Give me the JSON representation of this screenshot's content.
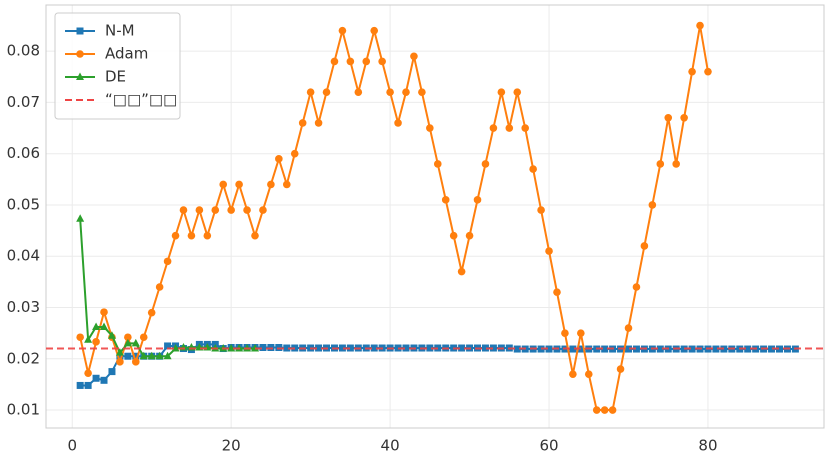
{
  "chart_data": {
    "type": "line",
    "xlim": [
      -3.3,
      94.6
    ],
    "ylim": [
      0.0065,
      0.089
    ],
    "xticks": [
      0,
      20,
      40,
      60,
      80
    ],
    "yticks": [
      0.01,
      0.02,
      0.03,
      0.04,
      0.05,
      0.06,
      0.07,
      0.08
    ],
    "grid": true,
    "legend": "upper left",
    "series": [
      {
        "name": "N-M",
        "color": "#1f77b4",
        "marker": "square",
        "x": [
          1,
          2,
          3,
          4,
          5,
          6,
          7,
          8,
          9,
          10,
          11,
          12,
          13,
          14,
          15,
          16,
          17,
          18,
          19,
          20,
          21,
          22,
          23,
          24,
          25,
          26,
          27,
          28,
          29,
          30,
          31,
          32,
          33,
          34,
          35,
          36,
          37,
          38,
          39,
          40,
          41,
          42,
          43,
          44,
          45,
          46,
          47,
          48,
          49,
          50,
          51,
          52,
          53,
          54,
          55,
          56,
          57,
          58,
          59,
          60,
          61,
          62,
          63,
          64,
          65,
          66,
          67,
          68,
          69,
          70,
          71,
          72,
          73,
          74,
          75,
          76,
          77,
          78,
          79,
          80,
          81,
          82,
          83,
          84,
          85,
          86,
          87,
          88,
          89,
          90,
          91
        ],
        "values": [
          0.0148,
          0.0148,
          0.0162,
          0.0158,
          0.0175,
          0.0205,
          0.0205,
          0.0205,
          0.0205,
          0.0205,
          0.0205,
          0.0225,
          0.0225,
          0.022,
          0.0218,
          0.0228,
          0.0228,
          0.0228,
          0.022,
          0.0222,
          0.0222,
          0.0222,
          0.0222,
          0.0222,
          0.0222,
          0.0222,
          0.0221,
          0.0221,
          0.0221,
          0.0221,
          0.0221,
          0.0221,
          0.0221,
          0.0221,
          0.0221,
          0.0221,
          0.0221,
          0.0221,
          0.0221,
          0.0221,
          0.0221,
          0.0221,
          0.0221,
          0.0221,
          0.0221,
          0.0221,
          0.0221,
          0.0221,
          0.0221,
          0.0221,
          0.0221,
          0.0221,
          0.0221,
          0.0221,
          0.0221,
          0.0219,
          0.0219,
          0.0219,
          0.0219,
          0.0219,
          0.0219,
          0.0219,
          0.0219,
          0.0219,
          0.0219,
          0.0219,
          0.0219,
          0.0219,
          0.0219,
          0.0219,
          0.0219,
          0.0219,
          0.0219,
          0.0219,
          0.0219,
          0.0219,
          0.0219,
          0.0219,
          0.0219,
          0.0219,
          0.0219,
          0.0219,
          0.0219,
          0.0219,
          0.0219,
          0.0219,
          0.0219,
          0.0219,
          0.0219,
          0.0219,
          0.0219
        ]
      },
      {
        "name": "Adam",
        "color": "#ff7f0e",
        "marker": "circle",
        "x": [
          1,
          2,
          3,
          4,
          5,
          6,
          7,
          8,
          9,
          10,
          11,
          12,
          13,
          14,
          15,
          16,
          17,
          18,
          19,
          20,
          21,
          22,
          23,
          24,
          25,
          26,
          27,
          28,
          29,
          30,
          31,
          32,
          33,
          34,
          35,
          36,
          37,
          38,
          39,
          40,
          41,
          42,
          43,
          44,
          45,
          46,
          47,
          48,
          49,
          50,
          51,
          52,
          53,
          54,
          55,
          56,
          57,
          58,
          59,
          60,
          61,
          62,
          63,
          64,
          65,
          66,
          67,
          68,
          69,
          70,
          71,
          72,
          73,
          74,
          75,
          76,
          77,
          78,
          79,
          80
        ],
        "values": [
          0.0242,
          0.0172,
          0.0233,
          0.0291,
          0.0242,
          0.0194,
          0.0242,
          0.0194,
          0.0242,
          0.029,
          0.034,
          0.039,
          0.044,
          0.049,
          0.044,
          0.049,
          0.044,
          0.049,
          0.054,
          0.049,
          0.054,
          0.049,
          0.044,
          0.049,
          0.054,
          0.059,
          0.054,
          0.06,
          0.066,
          0.072,
          0.066,
          0.072,
          0.078,
          0.084,
          0.078,
          0.072,
          0.078,
          0.084,
          0.078,
          0.072,
          0.066,
          0.072,
          0.079,
          0.072,
          0.065,
          0.058,
          0.051,
          0.044,
          0.037,
          0.044,
          0.051,
          0.058,
          0.065,
          0.072,
          0.065,
          0.072,
          0.065,
          0.057,
          0.049,
          0.041,
          0.033,
          0.025,
          0.017,
          0.025,
          0.017,
          0.01,
          0.01,
          0.01,
          0.018,
          0.026,
          0.034,
          0.042,
          0.05,
          0.058,
          0.067,
          0.058,
          0.067,
          0.076,
          0.085,
          0.076
        ]
      },
      {
        "name": "DE",
        "color": "#2ca02c",
        "marker": "triangle",
        "x": [
          1,
          2,
          3,
          4,
          5,
          6,
          7,
          8,
          9,
          10,
          11,
          12,
          13,
          14,
          15,
          16,
          17,
          18,
          19,
          20,
          21,
          22,
          23
        ],
        "values": [
          0.0473,
          0.0237,
          0.0262,
          0.0262,
          0.0245,
          0.0212,
          0.023,
          0.023,
          0.0205,
          0.0205,
          0.0205,
          0.0205,
          0.022,
          0.0222,
          0.0222,
          0.0222,
          0.0222,
          0.022,
          0.022,
          0.022,
          0.022,
          0.022,
          0.022
        ]
      }
    ],
    "hlines": [
      {
        "name": "“□□”□□",
        "value": 0.022,
        "color": "#ef4444"
      }
    ]
  }
}
